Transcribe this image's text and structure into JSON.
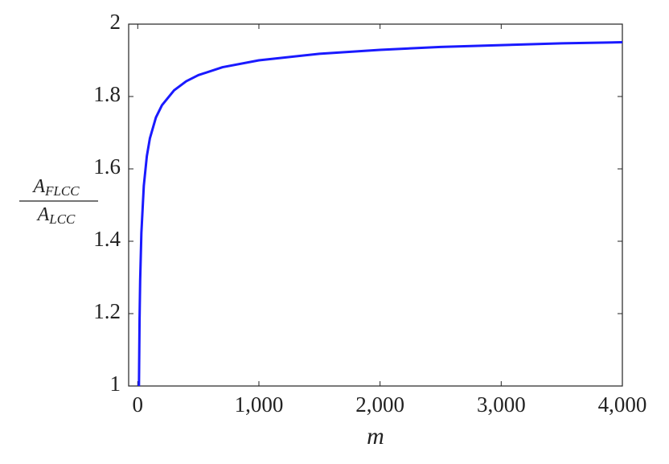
{
  "chart_data": {
    "type": "line",
    "x_label": "m",
    "y_label": {
      "numerator": {
        "base": "A",
        "sub": "FLCC"
      },
      "denominator": {
        "base": "A",
        "sub": "LCC"
      }
    },
    "x": [
      10,
      15,
      20,
      30,
      50,
      75,
      100,
      150,
      200,
      300,
      400,
      500,
      700,
      1000,
      1500,
      2000,
      2500,
      3000,
      3500,
      4000
    ],
    "series": [
      {
        "color": "#1a1aff",
        "values": [
          1.0,
          1.184,
          1.293,
          1.423,
          1.553,
          1.635,
          1.684,
          1.742,
          1.776,
          1.817,
          1.842,
          1.859,
          1.881,
          1.9,
          1.918,
          1.929,
          1.937,
          1.942,
          1.947,
          1.95
        ]
      }
    ],
    "xlim": [
      -75,
      4000
    ],
    "ylim": [
      1,
      2
    ],
    "xticks": [
      0,
      {
        "value": 1000,
        "label": "1,000"
      },
      {
        "value": 2000,
        "label": "2,000"
      },
      {
        "value": 3000,
        "label": "3,000"
      },
      {
        "value": 4000,
        "label": "4,000"
      }
    ],
    "yticks": [
      1,
      1.2,
      1.4,
      1.6,
      1.8,
      2
    ]
  }
}
